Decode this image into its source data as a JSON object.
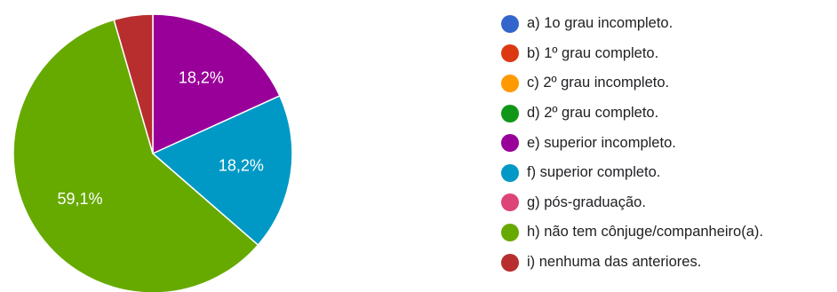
{
  "chart_data": {
    "type": "pie",
    "categories": [
      "a) 1o grau incompleto.",
      "b) 1º grau completo.",
      "c) 2º grau incompleto.",
      "d) 2º grau completo.",
      "e) superior incompleto.",
      "f) superior completo.",
      "g) pós-graduação.",
      "h) não tem cônjuge/companheiro(a).",
      "i) nenhuma das anteriores."
    ],
    "values": [
      0,
      0,
      0,
      0,
      18.2,
      18.2,
      0,
      59.1,
      4.5
    ],
    "data_labels": [
      "",
      "",
      "",
      "",
      "18,2%",
      "18,2%",
      "",
      "59,1%",
      ""
    ],
    "colors": [
      "#3366cc",
      "#dc3912",
      "#ff9900",
      "#109618",
      "#990099",
      "#0099c6",
      "#dd4477",
      "#66aa00",
      "#b82e2e"
    ],
    "legend_position": "right",
    "start_angle_deg": 90,
    "direction": "clockwise"
  }
}
